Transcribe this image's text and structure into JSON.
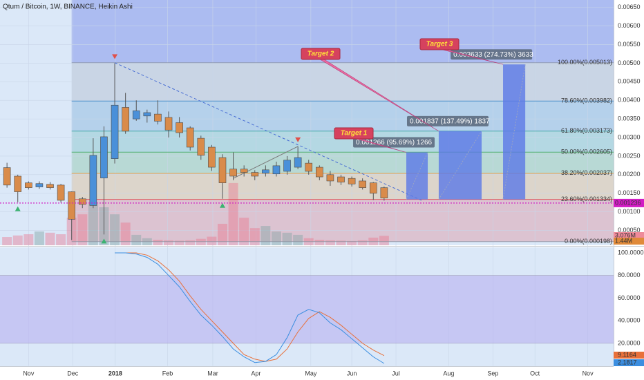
{
  "chart_data": [
    {
      "type": "candlestick",
      "title": "Qtum / Bitcoin, 1W, BINANCE, Heikin Ashi",
      "x": [
        0,
        1,
        2,
        3,
        4,
        5,
        6,
        7,
        8,
        9,
        10,
        11,
        12,
        13,
        14,
        15,
        16,
        17,
        18,
        19,
        20,
        21,
        22,
        23,
        24,
        25,
        26,
        27,
        28,
        29,
        30,
        31,
        32,
        33,
        34,
        35
      ],
      "open": [
        0.00219,
        0.00196,
        0.00178,
        0.00167,
        0.00174,
        0.00172,
        0.00154,
        0.00135,
        0.00117,
        0.00191,
        0.00243,
        0.00381,
        0.0035,
        0.00358,
        0.00363,
        0.00354,
        0.0034,
        0.00326,
        0.00298,
        0.00274,
        0.00246,
        0.00215,
        0.00215,
        0.00206,
        0.00204,
        0.00202,
        0.00209,
        0.0022,
        0.00231,
        0.0022,
        0.002,
        0.00194,
        0.0019,
        0.00183,
        0.00178,
        0.00165
      ],
      "high": [
        0.00232,
        0.002,
        0.00182,
        0.00182,
        0.0018,
        0.00175,
        0.00155,
        0.0014,
        0.00298,
        0.0033,
        0.005,
        0.0042,
        0.004,
        0.00375,
        0.004,
        0.0037,
        0.00355,
        0.0033,
        0.00305,
        0.0028,
        0.00255,
        0.0026,
        0.00225,
        0.00212,
        0.00225,
        0.00235,
        0.0025,
        0.00276,
        0.0024,
        0.00225,
        0.0021,
        0.002,
        0.00195,
        0.0019,
        0.0018,
        0.00168
      ],
      "low": [
        0.00165,
        0.00126,
        0.0016,
        0.00162,
        0.0016,
        0.00125,
        0.00024,
        0.0011,
        0.0011,
        0.00039,
        0.0023,
        0.0031,
        0.00345,
        0.0034,
        0.00335,
        0.003,
        0.003,
        0.00265,
        0.0024,
        0.0021,
        0.00135,
        0.00185,
        0.00195,
        0.00185,
        0.00195,
        0.00195,
        0.002,
        0.00215,
        0.002,
        0.00185,
        0.0017,
        0.00172,
        0.00168,
        0.0016,
        0.00132,
        0.0013
      ],
      "close": [
        0.00172,
        0.00154,
        0.00165,
        0.00176,
        0.00165,
        0.00131,
        0.0008,
        0.0012,
        0.00252,
        0.00302,
        0.00387,
        0.00317,
        0.00372,
        0.00367,
        0.00344,
        0.0032,
        0.00313,
        0.00274,
        0.00252,
        0.0022,
        0.00178,
        0.00196,
        0.00206,
        0.00196,
        0.00213,
        0.00224,
        0.00239,
        0.00246,
        0.00209,
        0.00194,
        0.00183,
        0.0018,
        0.00175,
        0.00165,
        0.0015,
        0.00137
      ],
      "up_color": "#4a90d9",
      "down_color": "#d98b4a",
      "xlim": [
        -0.65,
        56.3
      ],
      "xticks": [
        {
          "value": 2,
          "label": "Nov"
        },
        {
          "value": 6.1,
          "label": "Dec"
        },
        {
          "value": 10.05,
          "label": "2018"
        },
        {
          "value": 14.9,
          "label": "Feb"
        },
        {
          "value": 19.1,
          "label": "Mar"
        },
        {
          "value": 23.1,
          "label": "Apr"
        },
        {
          "value": 28.2,
          "label": "May"
        },
        {
          "value": 32,
          "label": "Jun"
        },
        {
          "value": 36.1,
          "label": "Jul"
        },
        {
          "value": 41,
          "label": "Aug"
        },
        {
          "value": 45.1,
          "label": "Sep"
        },
        {
          "value": 49,
          "label": "Oct"
        },
        {
          "value": 53.9,
          "label": "Nov"
        }
      ],
      "ylim": [
        0.0001,
        0.0067
      ],
      "yticks": [
        {
          "value": 0.0005,
          "label": "0.00050"
        },
        {
          "value": 0.001,
          "label": "0.00100"
        },
        {
          "value": 0.0015,
          "label": "0.00150"
        },
        {
          "value": 0.002,
          "label": "0.00200"
        },
        {
          "value": 0.0025,
          "label": "0.00250"
        },
        {
          "value": 0.003,
          "label": "0.00300"
        },
        {
          "value": 0.0035,
          "label": "0.00350"
        },
        {
          "value": 0.004,
          "label": "0.00400"
        },
        {
          "value": 0.0045,
          "label": "0.00450"
        },
        {
          "value": 0.005,
          "label": "0.00500"
        },
        {
          "value": 0.0055,
          "label": "0.00550"
        },
        {
          "value": 0.006,
          "label": "0.00600"
        },
        {
          "value": 0.0065,
          "label": "0.00650"
        }
      ],
      "grid": true,
      "volume": {
        "values": [
          2.7,
          3.2,
          3.6,
          4.5,
          4.1,
          3.6,
          9,
          10.1,
          13.5,
          12.4,
          10.1,
          7.4,
          3.4,
          2.3,
          1.8,
          1.6,
          1.5,
          1.6,
          2.1,
          2.8,
          7,
          20.3,
          9,
          5.6,
          6.3,
          4.5,
          4.1,
          3.4,
          2.3,
          1.8,
          1.6,
          1.5,
          1.4,
          1.6,
          2.5,
          3.076
        ],
        "lim": [
          0,
          80
        ],
        "up_color": "rgba(130,165,165,0.45)",
        "down_color": "rgba(236,110,135,0.4)",
        "labels": [
          "3.076M",
          "1.44M"
        ],
        "label_colors": [
          "#ef8a9a",
          "#e08a3a"
        ]
      },
      "fib": {
        "start": 6,
        "top_color": "#8c9fec",
        "levels": [
          {
            "value": 0.005013,
            "label": "100.00%(0.005013)",
            "color": "#8a93a3"
          },
          {
            "value": 0.003982,
            "label": "78.60%(0.003982)",
            "color": "#2f7fc1"
          },
          {
            "value": 0.003173,
            "label": "61.80%(0.003173)",
            "color": "#2b9e9a"
          },
          {
            "value": 0.002605,
            "label": "50.00%(0.002605)",
            "color": "#3aa55a"
          },
          {
            "value": 0.002037,
            "label": "38.20%(0.002037)",
            "color": "#e0912c"
          },
          {
            "value": 0.001334,
            "label": "23.60%(0.001334)",
            "color": "#e0414a"
          },
          {
            "value": 0.000198,
            "label": "0.00%(0.000198)",
            "color": "#8a93a3"
          }
        ]
      },
      "price_line": {
        "value": 0.001236,
        "color": "#d21cc4"
      },
      "target_color": "#5b78e6",
      "targets": [
        {
          "name": "Target 1",
          "label": "0.001266 (95.69%) 1266",
          "base": 0.001334,
          "height": 0.001266,
          "x": [
            37.06,
            39.05
          ]
        },
        {
          "name": "Target 2",
          "label": "0.001837 (137.49%) 1837",
          "base": 0.001334,
          "height": 0.001837,
          "x": [
            40.07,
            44.05
          ]
        },
        {
          "name": "Target 3",
          "label": "0.003633 (274.73%) 3633",
          "base": 0.001334,
          "height": 0.003633,
          "x": [
            46.04,
            48.1
          ]
        }
      ],
      "signals": [
        {
          "x": 10,
          "side": "high",
          "color": "#e0504a"
        },
        {
          "x": 27,
          "side": "high",
          "color": "#e0504a"
        },
        {
          "x": 1,
          "side": "low",
          "color": "#3cb371"
        },
        {
          "x": 9,
          "side": "low",
          "color": "#3cb371"
        },
        {
          "x": 20,
          "side": "low",
          "color": "#3cb371"
        }
      ],
      "trendlines": [
        {
          "x": [
            10,
            38.47
          ],
          "y": [
            0.005013,
            0.00131
          ],
          "color": "#4a6fd4",
          "dash": true
        },
        {
          "x": [
            21,
            27
          ],
          "y": [
            0.0019,
            0.00276
          ],
          "color": "#7a7a7a",
          "dash": false
        }
      ]
    },
    {
      "type": "line",
      "ylim": [
        0,
        100
      ],
      "yticks": [
        {
          "value": 20,
          "label": "20.0000"
        },
        {
          "value": 40,
          "label": "40.0000"
        },
        {
          "value": 60,
          "label": "60.0000"
        },
        {
          "value": 80,
          "label": "80.0000"
        },
        {
          "value": 100,
          "label": "100.0000"
        }
      ],
      "band": [
        20,
        80
      ],
      "band_color": "#b8b0f0",
      "series": [
        {
          "color": "#e8703a",
          "values": [
            null,
            null,
            null,
            null,
            null,
            null,
            null,
            null,
            null,
            null,
            100,
            100,
            100,
            98,
            93,
            85,
            75,
            62,
            50,
            40,
            30,
            20,
            10,
            6,
            4,
            6,
            15,
            30,
            42,
            48,
            43,
            36,
            28,
            20,
            14,
            9.1164
          ]
        },
        {
          "color": "#3b8ee0",
          "values": [
            null,
            null,
            null,
            null,
            null,
            null,
            null,
            null,
            null,
            null,
            100,
            100,
            99,
            96,
            90,
            80,
            70,
            57,
            45,
            36,
            26,
            15,
            8,
            3,
            4,
            10,
            25,
            45,
            50,
            47,
            38,
            32,
            24,
            16,
            8,
            2.1817
          ]
        }
      ]
    }
  ]
}
